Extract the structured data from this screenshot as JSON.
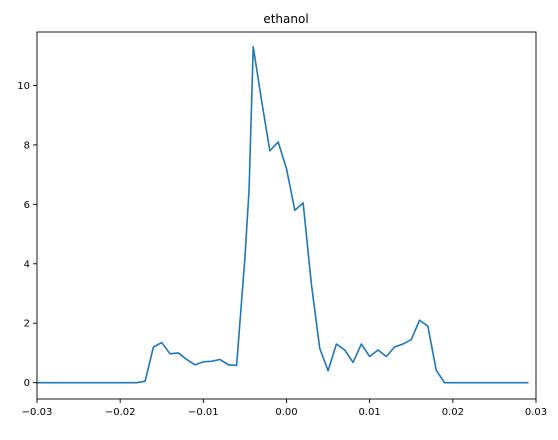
{
  "chart_data": {
    "type": "line",
    "title": "ethanol",
    "xlabel": "",
    "ylabel": "",
    "xlim": [
      -0.03,
      0.03
    ],
    "ylim": [
      -0.55,
      11.8
    ],
    "grid": false,
    "x_ticks": [
      -0.03,
      -0.02,
      -0.01,
      0.0,
      0.01,
      0.02,
      0.03
    ],
    "x_tick_labels": [
      "−0.03",
      "−0.02",
      "−0.01",
      "0.00",
      "0.01",
      "0.02",
      "0.03"
    ],
    "y_ticks": [
      0,
      2,
      4,
      6,
      8,
      10
    ],
    "y_tick_labels": [
      "0",
      "2",
      "4",
      "6",
      "8",
      "10"
    ],
    "series": [
      {
        "color": "#1f77b4",
        "x": [
          -0.03,
          -0.029,
          -0.028,
          -0.027,
          -0.026,
          -0.025,
          -0.024,
          -0.023,
          -0.022,
          -0.021,
          -0.02,
          -0.019,
          -0.018,
          -0.017,
          -0.016,
          -0.015,
          -0.014,
          -0.013,
          -0.012,
          -0.011,
          -0.01,
          -0.009,
          -0.008,
          -0.007,
          -0.006,
          -0.005,
          -0.0045,
          -0.004,
          -0.003,
          -0.002,
          -0.001,
          0.0,
          0.001,
          0.002,
          0.003,
          0.004,
          0.005,
          0.006,
          0.007,
          0.008,
          0.009,
          0.01,
          0.011,
          0.012,
          0.013,
          0.014,
          0.015,
          0.016,
          0.017,
          0.018,
          0.019,
          0.02,
          0.021,
          0.022,
          0.023,
          0.024,
          0.025,
          0.026,
          0.027,
          0.028,
          0.029
        ],
        "y": [
          0,
          0,
          0,
          0,
          0,
          0,
          0,
          0,
          0,
          0,
          0,
          0,
          0,
          0.05,
          1.2,
          1.35,
          0.97,
          1.0,
          0.78,
          0.6,
          0.7,
          0.72,
          0.78,
          0.6,
          0.58,
          4.2,
          6.5,
          11.3,
          9.5,
          7.8,
          8.1,
          7.2,
          5.8,
          6.05,
          3.3,
          1.15,
          0.4,
          1.3,
          1.1,
          0.68,
          1.3,
          0.88,
          1.1,
          0.88,
          1.2,
          1.3,
          1.45,
          2.1,
          1.9,
          0.42,
          0,
          0,
          0,
          0,
          0,
          0,
          0,
          0,
          0,
          0,
          0
        ]
      }
    ]
  }
}
